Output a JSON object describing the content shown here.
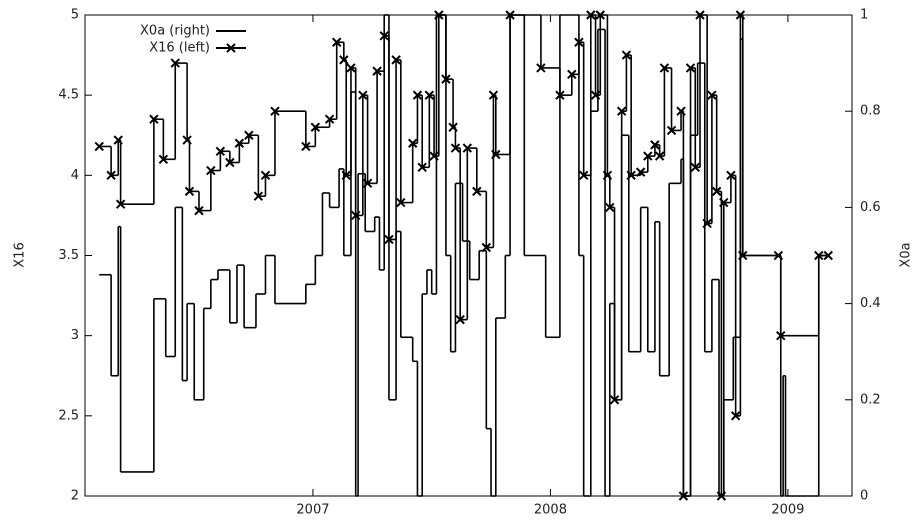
{
  "chart_data": {
    "type": "line",
    "step": true,
    "y_label": "X16",
    "y2_label": "X0a",
    "xlim": [
      2006.04,
      2009.27
    ],
    "xticks": [
      2007,
      2008,
      2009
    ],
    "ylim": [
      2,
      5
    ],
    "yticks": [
      2,
      2.5,
      3,
      3.5,
      4,
      4.5,
      5
    ],
    "y2lim": [
      0,
      1
    ],
    "y2ticks": [
      0,
      0.2,
      0.4,
      0.6,
      0.8,
      1
    ],
    "grid": false,
    "legend": "top left",
    "series": [
      {
        "name": "X0a  (right)",
        "color": "#000000",
        "axis": "y2",
        "x": [
          2006.1,
          2006.15,
          2006.18,
          2006.19,
          2006.33,
          2006.38,
          2006.42,
          2006.45,
          2006.47,
          2006.5,
          2006.54,
          2006.57,
          2006.6,
          2006.65,
          2006.68,
          2006.71,
          2006.76,
          2006.8,
          2006.84,
          2006.97,
          2007.01,
          2007.04,
          2007.07,
          2007.11,
          2007.13,
          2007.16,
          2007.18,
          2007.19,
          2007.22,
          2007.26,
          2007.28,
          2007.3,
          2007.32,
          2007.35,
          2007.37,
          2007.42,
          2007.44,
          2007.46,
          2007.48,
          2007.5,
          2007.52,
          2007.56,
          2007.58,
          2007.6,
          2007.63,
          2007.66,
          2007.7,
          2007.73,
          2007.75,
          2007.77,
          2007.81,
          2007.83,
          2007.89,
          2007.98,
          2008.04,
          2008.12,
          2008.14,
          2008.17,
          2008.2,
          2008.23,
          2008.25,
          2008.27,
          2008.3,
          2008.33,
          2008.38,
          2008.41,
          2008.44,
          2008.46,
          2008.5,
          2008.55,
          2008.56,
          2008.59,
          2008.62,
          2008.65,
          2008.68,
          2008.71,
          2008.73,
          2008.77,
          2008.8,
          2008.81,
          2008.97,
          2008.98,
          2008.99,
          2009.13,
          2009.17
        ],
        "values": [
          0.46,
          0.25,
          0.56,
          0.05,
          0.41,
          0.29,
          0.6,
          0.24,
          0.4,
          0.2,
          0.39,
          0.45,
          0.47,
          0.36,
          0.48,
          0.35,
          0.42,
          0.5,
          0.4,
          0.44,
          0.5,
          0.63,
          0.6,
          0.68,
          0.5,
          0.84,
          0,
          0.67,
          0.55,
          0.58,
          0.47,
          1,
          0.2,
          0.55,
          0.33,
          0.28,
          0,
          0.42,
          0.47,
          0.42,
          1,
          0.5,
          0.3,
          0.65,
          0.53,
          0.45,
          0.51,
          0.14,
          0,
          0.37,
          0.5,
          1,
          0.5,
          0.33,
          1,
          0.5,
          0,
          0.8,
          0.97,
          0,
          0.4,
          0.2,
          0.75,
          0.3,
          0.6,
          0.3,
          0.57,
          0.25,
          0.65,
          0.7,
          0,
          0.75,
          0.9,
          0.3,
          0.45,
          0,
          0.2,
          0.33,
          0.95,
          0.5,
          0,
          0.25,
          0,
          0.5,
          0.5
        ]
      },
      {
        "name": "X16  (left)",
        "color": "#000000",
        "axis": "y",
        "marker": "x",
        "x": [
          2006.1,
          2006.15,
          2006.18,
          2006.19,
          2006.33,
          2006.37,
          2006.42,
          2006.47,
          2006.48,
          2006.52,
          2006.57,
          2006.61,
          2006.65,
          2006.69,
          2006.73,
          2006.77,
          2006.8,
          2006.84,
          2006.97,
          2007.01,
          2007.07,
          2007.1,
          2007.13,
          2007.14,
          2007.16,
          2007.18,
          2007.21,
          2007.23,
          2007.27,
          2007.3,
          2007.32,
          2007.35,
          2007.37,
          2007.42,
          2007.44,
          2007.46,
          2007.49,
          2007.51,
          2007.53,
          2007.56,
          2007.59,
          2007.6,
          2007.62,
          2007.65,
          2007.69,
          2007.73,
          2007.76,
          2007.77,
          2007.83,
          2007.96,
          2008.04,
          2008.09,
          2008.12,
          2008.14,
          2008.17,
          2008.19,
          2008.21,
          2008.24,
          2008.25,
          2008.27,
          2008.3,
          2008.32,
          2008.34,
          2008.38,
          2008.41,
          2008.44,
          2008.46,
          2008.48,
          2008.51,
          2008.55,
          2008.56,
          2008.59,
          2008.61,
          2008.63,
          2008.66,
          2008.68,
          2008.7,
          2008.72,
          2008.73,
          2008.76,
          2008.78,
          2008.8,
          2008.81,
          2008.96,
          2008.97,
          2009.13,
          2009.17
        ],
        "values": [
          4.18,
          4.0,
          4.22,
          3.82,
          4.35,
          4.1,
          4.7,
          4.22,
          3.9,
          3.78,
          4.03,
          4.15,
          4.08,
          4.2,
          4.25,
          3.87,
          4.0,
          4.4,
          4.18,
          4.3,
          4.35,
          4.83,
          4.72,
          4.0,
          4.67,
          3.75,
          4.5,
          3.95,
          4.65,
          4.87,
          3.6,
          4.72,
          3.83,
          4.2,
          4.5,
          4.05,
          4.5,
          4.12,
          5.0,
          4.6,
          4.3,
          4.17,
          3.1,
          4.17,
          3.9,
          3.55,
          4.5,
          4.13,
          5.0,
          4.67,
          4.5,
          4.63,
          4.83,
          4.0,
          5.0,
          4.5,
          5.0,
          4.0,
          3.8,
          2.6,
          4.4,
          4.75,
          4.0,
          4.02,
          4.12,
          4.19,
          4.12,
          4.67,
          4.28,
          4.4,
          2.0,
          4.67,
          4.05,
          5.0,
          3.7,
          4.5,
          3.9,
          2.0,
          3.83,
          4.0,
          2.5,
          5.0,
          3.5,
          3.5,
          3.0,
          3.5,
          3.5
        ]
      }
    ]
  }
}
